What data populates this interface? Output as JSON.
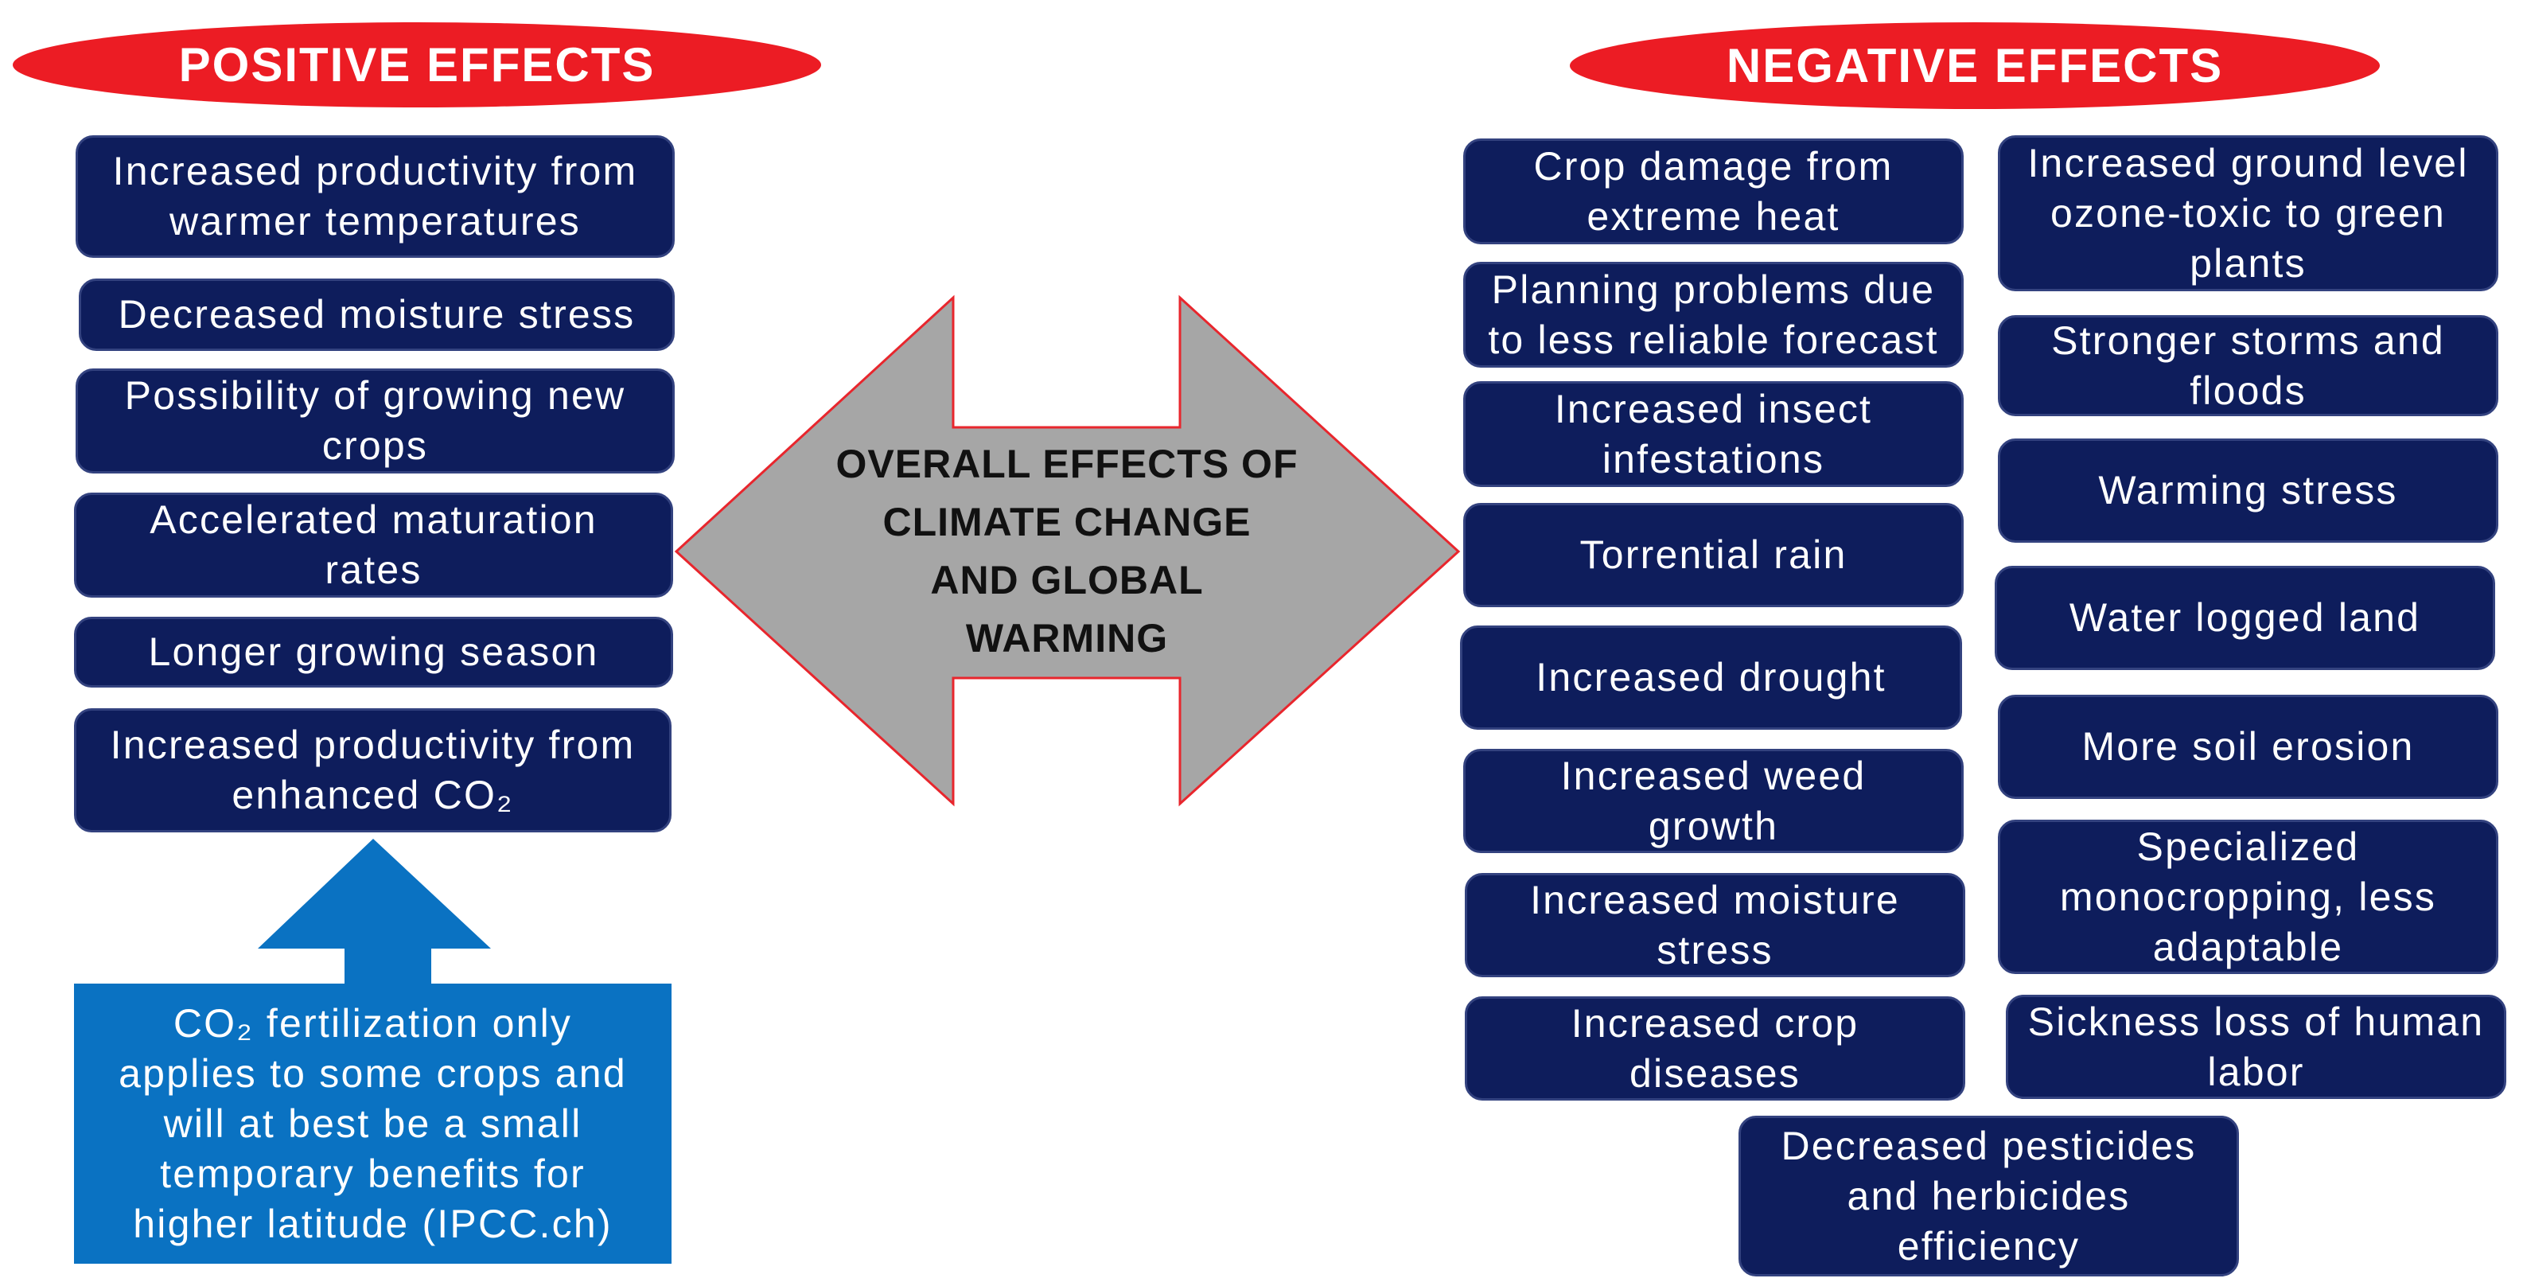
{
  "colors": {
    "banner_red": "#ec1c24",
    "box_navy": "#0e1d5c",
    "box_edge": "#33427f",
    "note_blue": "#0a72c2",
    "arrow_gray": "#a6a6a6",
    "arrow_outline": "#e8262d"
  },
  "positive": {
    "title": "POSITIVE EFFECTS",
    "items": [
      "Increased productivity from\nwarmer temperatures",
      "Decreased moisture stress",
      "Possibility of growing new\ncrops",
      "Accelerated maturation\nrates",
      "Longer growing season",
      "Increased productivity from\nenhanced CO₂"
    ],
    "co2_note": "CO₂ fertilization only\napplies to some crops and\nwill at best be a small\ntemporary benefits for\nhigher latitude (IPCC.ch)"
  },
  "center": {
    "label": "OVERALL EFFECTS OF\nCLIMATE CHANGE\nAND GLOBAL\nWARMING"
  },
  "negative": {
    "title": "NEGATIVE EFFECTS",
    "column_1": [
      "Crop damage from\nextreme heat",
      "Planning problems due\nto less reliable forecast",
      "Increased insect\ninfestations",
      "Torrential rain",
      "Increased drought",
      "Increased weed\ngrowth",
      "Increased moisture\nstress",
      "Increased crop\ndiseases"
    ],
    "column_2": [
      "Increased ground level\nozone-toxic to green\nplants",
      "Stronger storms and\nfloods",
      "Warming stress",
      "Water logged land",
      "More soil erosion",
      "Specialized\nmonocropping, less\nadaptable",
      "Sickness loss of human\nlabor"
    ],
    "bottom": "Decreased pesticides\nand herbicides\nefficiency"
  }
}
